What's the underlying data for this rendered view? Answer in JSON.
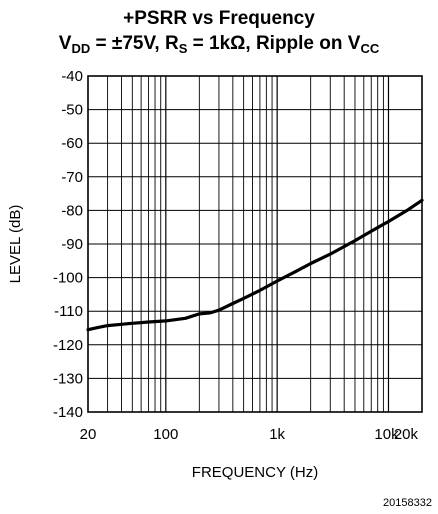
{
  "chart_data": {
    "type": "line",
    "title_line1": "+PSRR vs Frequency",
    "title_line2": {
      "p1": "V",
      "s1": "DD",
      "p2": " = ±75V, R",
      "s2": "S",
      "p3": " = 1kΩ, Ripple on V",
      "s3": "CC"
    },
    "xlabel": "FREQUENCY (Hz)",
    "ylabel": "LEVEL (dB)",
    "xscale": "log",
    "xlim": [
      20,
      20000
    ],
    "ylim": [
      -140,
      -40
    ],
    "grid": true,
    "xticks": [
      {
        "value": 20,
        "label": "20"
      },
      {
        "value": 100,
        "label": "100"
      },
      {
        "value": 1000,
        "label": "1k"
      },
      {
        "value": 10000,
        "label": "10k"
      },
      {
        "value": 20000,
        "label": "20k"
      }
    ],
    "yticks": [
      {
        "value": -40,
        "label": "-40"
      },
      {
        "value": -50,
        "label": "-50"
      },
      {
        "value": -60,
        "label": "-60"
      },
      {
        "value": -70,
        "label": "-70"
      },
      {
        "value": -80,
        "label": "-80"
      },
      {
        "value": -90,
        "label": "-90"
      },
      {
        "value": -100,
        "label": "-100"
      },
      {
        "value": -110,
        "label": "-110"
      },
      {
        "value": -120,
        "label": "-120"
      },
      {
        "value": -130,
        "label": "-130"
      },
      {
        "value": -140,
        "label": "-140"
      }
    ],
    "series": [
      {
        "x": [
          20,
          25,
          30,
          40,
          50,
          70,
          100,
          150,
          200,
          250,
          300,
          400,
          500,
          700,
          1000,
          1500,
          2000,
          3000,
          5000,
          7000,
          10000,
          15000,
          20000
        ],
        "y": [
          -115.5,
          -114.8,
          -114.3,
          -113.9,
          -113.6,
          -113.2,
          -112.9,
          -112.1,
          -110.8,
          -110.5,
          -109.7,
          -107.7,
          -106.2,
          -103.8,
          -101,
          -98,
          -95.8,
          -93,
          -89,
          -86.2,
          -83.3,
          -79.8,
          -77
        ]
      }
    ]
  },
  "doc_id": "20158332"
}
